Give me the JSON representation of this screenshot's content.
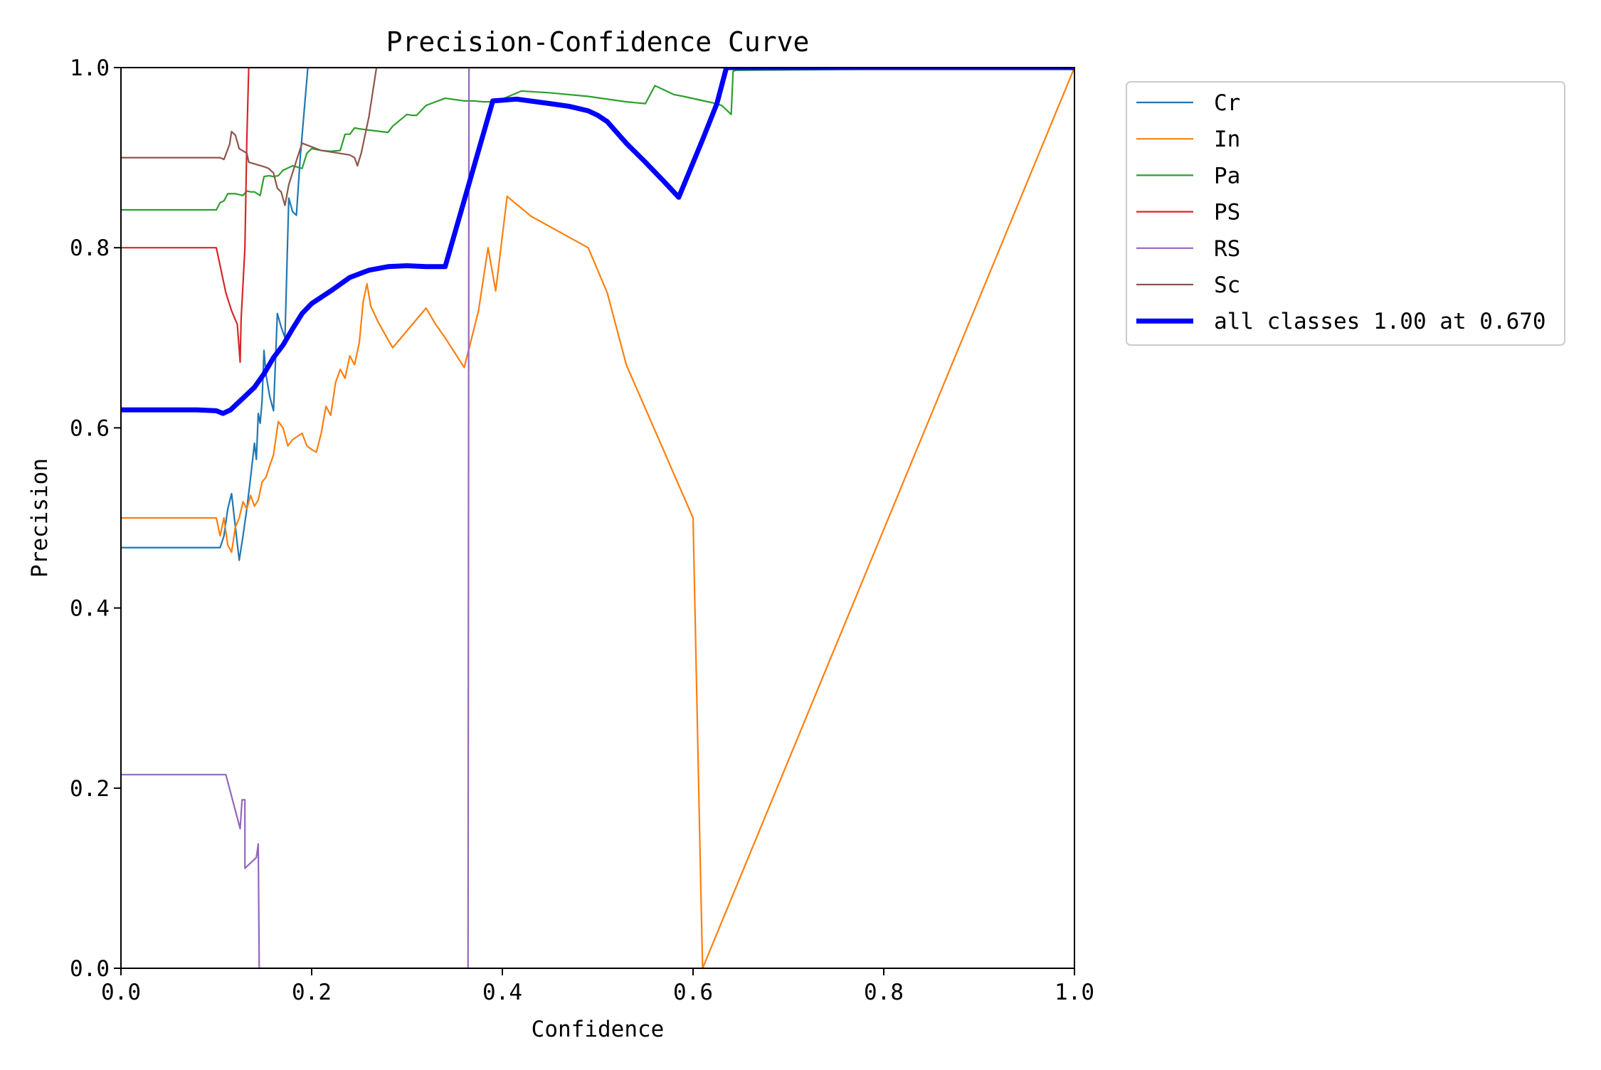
{
  "chart_data": {
    "type": "line",
    "title": "Precision-Confidence Curve",
    "xlabel": "Confidence",
    "ylabel": "Precision",
    "xlim": [
      0,
      1
    ],
    "ylim": [
      0,
      1
    ],
    "xticks": [
      "0.0",
      "0.2",
      "0.4",
      "0.6",
      "0.8",
      "1.0"
    ],
    "yticks": [
      "0.0",
      "0.2",
      "0.4",
      "0.6",
      "0.8",
      "1.0"
    ],
    "grid": false,
    "legend_position": "outside-top-right",
    "series": [
      {
        "name": "Cr",
        "color": "#1f77b4",
        "width": 2.2,
        "x": [
          0,
          0.104,
          0.108,
          0.112,
          0.116,
          0.12,
          0.124,
          0.128,
          0.132,
          0.136,
          0.14,
          0.142,
          0.144,
          0.146,
          0.148,
          0.15,
          0.152,
          0.156,
          0.16,
          0.164,
          0.168,
          0.172,
          0.176,
          0.18,
          0.184,
          0.188,
          0.192,
          0.196,
          1.0
        ],
        "y": [
          0.467,
          0.467,
          0.48,
          0.51,
          0.527,
          0.49,
          0.453,
          0.48,
          0.51,
          0.545,
          0.583,
          0.565,
          0.616,
          0.605,
          0.63,
          0.686,
          0.66,
          0.635,
          0.619,
          0.727,
          0.712,
          0.7,
          0.855,
          0.84,
          0.836,
          0.9,
          0.95,
          1.0,
          1.0
        ]
      },
      {
        "name": "In",
        "color": "#ff7f0e",
        "width": 2.2,
        "x": [
          0,
          0.1,
          0.104,
          0.108,
          0.112,
          0.116,
          0.12,
          0.124,
          0.128,
          0.132,
          0.136,
          0.14,
          0.144,
          0.148,
          0.152,
          0.156,
          0.16,
          0.165,
          0.17,
          0.175,
          0.18,
          0.19,
          0.195,
          0.2,
          0.205,
          0.21,
          0.215,
          0.22,
          0.225,
          0.23,
          0.235,
          0.24,
          0.245,
          0.25,
          0.254,
          0.258,
          0.262,
          0.27,
          0.28,
          0.285,
          0.32,
          0.33,
          0.34,
          0.36,
          0.375,
          0.385,
          0.393,
          0.405,
          0.43,
          0.49,
          0.51,
          0.53,
          0.6,
          0.608,
          0.61,
          1.0
        ],
        "y": [
          0.5,
          0.5,
          0.48,
          0.5,
          0.47,
          0.462,
          0.49,
          0.5,
          0.518,
          0.51,
          0.525,
          0.513,
          0.52,
          0.54,
          0.545,
          0.558,
          0.57,
          0.607,
          0.6,
          0.58,
          0.587,
          0.594,
          0.58,
          0.576,
          0.573,
          0.594,
          0.624,
          0.614,
          0.65,
          0.665,
          0.655,
          0.68,
          0.67,
          0.695,
          0.74,
          0.76,
          0.735,
          0.717,
          0.698,
          0.689,
          0.733,
          0.715,
          0.7,
          0.667,
          0.73,
          0.8,
          0.752,
          0.857,
          0.835,
          0.8,
          0.75,
          0.67,
          0.5,
          0.095,
          0.0,
          1.0
        ]
      },
      {
        "name": "Pa",
        "color": "#2ca02c",
        "width": 2.2,
        "x": [
          0,
          0.1,
          0.104,
          0.108,
          0.112,
          0.116,
          0.12,
          0.124,
          0.128,
          0.132,
          0.136,
          0.14,
          0.146,
          0.15,
          0.155,
          0.16,
          0.165,
          0.17,
          0.18,
          0.19,
          0.195,
          0.2,
          0.21,
          0.22,
          0.23,
          0.235,
          0.24,
          0.245,
          0.25,
          0.28,
          0.285,
          0.3,
          0.305,
          0.31,
          0.32,
          0.325,
          0.34,
          0.36,
          0.37,
          0.38,
          0.39,
          0.4,
          0.42,
          0.45,
          0.49,
          0.53,
          0.55,
          0.56,
          0.58,
          0.59,
          0.62,
          0.63,
          0.64,
          0.642,
          0.645,
          1.0
        ],
        "y": [
          0.842,
          0.842,
          0.85,
          0.852,
          0.86,
          0.86,
          0.86,
          0.859,
          0.858,
          0.863,
          0.862,
          0.862,
          0.858,
          0.879,
          0.88,
          0.879,
          0.88,
          0.886,
          0.891,
          0.888,
          0.905,
          0.91,
          0.908,
          0.907,
          0.908,
          0.926,
          0.926,
          0.933,
          0.932,
          0.928,
          0.935,
          0.948,
          0.947,
          0.947,
          0.958,
          0.96,
          0.966,
          0.963,
          0.963,
          0.962,
          0.962,
          0.965,
          0.974,
          0.972,
          0.968,
          0.962,
          0.96,
          0.98,
          0.97,
          0.968,
          0.961,
          0.958,
          0.948,
          0.996,
          0.997,
          1.0
        ]
      },
      {
        "name": "PS",
        "color": "#d62728",
        "width": 2.2,
        "x": [
          0,
          0.1,
          0.104,
          0.11,
          0.116,
          0.122,
          0.125,
          0.126,
          0.13,
          0.132,
          0.134,
          1.0
        ],
        "y": [
          0.8,
          0.8,
          0.78,
          0.75,
          0.73,
          0.715,
          0.673,
          0.72,
          0.8,
          0.92,
          1.0,
          1.0
        ]
      },
      {
        "name": "RS",
        "color": "#9467bd",
        "width": 2.2,
        "x": [
          0,
          0.11,
          0.125,
          0.127,
          0.13,
          0.13,
          0.142,
          0.144,
          0.145,
          0.147,
          0.36,
          0.364,
          0.365,
          1.0
        ],
        "y": [
          0.215,
          0.215,
          0.155,
          0.187,
          0.187,
          0.111,
          0.123,
          0.138,
          0.0,
          0.0,
          0.0,
          0.0,
          1.0,
          1.0
        ]
      },
      {
        "name": "Sc",
        "color": "#8c564b",
        "width": 2.2,
        "x": [
          0,
          0.1,
          0.104,
          0.108,
          0.114,
          0.116,
          0.12,
          0.124,
          0.132,
          0.134,
          0.15,
          0.155,
          0.16,
          0.164,
          0.168,
          0.172,
          0.176,
          0.185,
          0.19,
          0.2,
          0.21,
          0.24,
          0.245,
          0.248,
          0.252,
          0.26,
          0.268,
          1.0
        ],
        "y": [
          0.9,
          0.9,
          0.9,
          0.898,
          0.915,
          0.929,
          0.925,
          0.91,
          0.905,
          0.895,
          0.89,
          0.888,
          0.883,
          0.866,
          0.862,
          0.847,
          0.87,
          0.9,
          0.916,
          0.912,
          0.908,
          0.903,
          0.9,
          0.891,
          0.905,
          0.945,
          1.0,
          1.0
        ]
      },
      {
        "name": "all classes 1.00 at 0.670",
        "color": "#0000ff",
        "width": 7,
        "x": [
          0,
          0.08,
          0.1,
          0.107,
          0.115,
          0.125,
          0.14,
          0.15,
          0.16,
          0.17,
          0.18,
          0.19,
          0.2,
          0.21,
          0.22,
          0.24,
          0.26,
          0.28,
          0.3,
          0.32,
          0.34,
          0.39,
          0.415,
          0.45,
          0.47,
          0.49,
          0.5,
          0.51,
          0.53,
          0.55,
          0.57,
          0.585,
          0.61,
          0.625,
          0.635,
          0.67,
          1.0
        ],
        "y": [
          0.62,
          0.62,
          0.619,
          0.616,
          0.62,
          0.63,
          0.645,
          0.66,
          0.678,
          0.692,
          0.71,
          0.727,
          0.738,
          0.745,
          0.752,
          0.767,
          0.775,
          0.779,
          0.78,
          0.779,
          0.779,
          0.963,
          0.965,
          0.96,
          0.957,
          0.952,
          0.947,
          0.94,
          0.916,
          0.895,
          0.873,
          0.856,
          0.92,
          0.96,
          1.0,
          1.0,
          1.0
        ]
      }
    ]
  }
}
